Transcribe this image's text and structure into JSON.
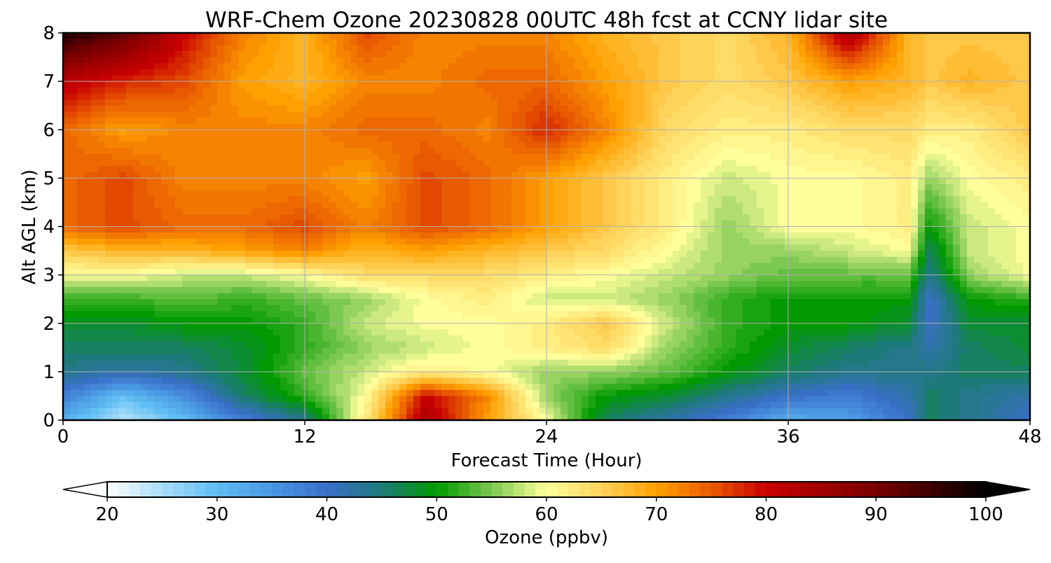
{
  "chart_data": {
    "type": "heatmap",
    "title": "WRF-Chem Ozone  20230828 00UTC 48h fcst at CCNY lidar site",
    "xlabel": "Forecast Time (Hour)",
    "ylabel": "Alt AGL (km)",
    "xlim": [
      0,
      48
    ],
    "ylim": [
      0,
      8
    ],
    "xticks": [
      0,
      12,
      24,
      36,
      48
    ],
    "yticks": [
      0,
      1,
      2,
      3,
      4,
      5,
      6,
      7,
      8
    ],
    "grid": true,
    "x": [
      0,
      3,
      6,
      9,
      12,
      15,
      18,
      21,
      24,
      27,
      30,
      33,
      36,
      39,
      42,
      43,
      45,
      48
    ],
    "y": [
      0,
      0.5,
      1,
      1.5,
      2,
      2.5,
      3,
      3.5,
      4,
      5,
      6,
      7,
      8
    ],
    "z": [
      [
        32,
        24,
        30,
        38,
        44,
        62,
        84,
        70,
        60,
        46,
        42,
        38,
        32,
        34,
        40,
        46,
        44,
        40
      ],
      [
        38,
        30,
        36,
        46,
        52,
        60,
        80,
        72,
        56,
        50,
        48,
        44,
        40,
        38,
        42,
        46,
        44,
        42
      ],
      [
        44,
        42,
        44,
        48,
        54,
        58,
        62,
        60,
        56,
        56,
        54,
        50,
        46,
        44,
        44,
        44,
        46,
        46
      ],
      [
        46,
        46,
        46,
        48,
        52,
        56,
        58,
        60,
        62,
        64,
        56,
        52,
        48,
        46,
        44,
        42,
        46,
        48
      ],
      [
        48,
        48,
        50,
        50,
        52,
        58,
        60,
        60,
        62,
        66,
        58,
        52,
        50,
        50,
        48,
        40,
        48,
        48
      ],
      [
        52,
        52,
        54,
        52,
        54,
        56,
        60,
        62,
        58,
        58,
        56,
        52,
        50,
        50,
        50,
        40,
        50,
        52
      ],
      [
        60,
        60,
        58,
        58,
        60,
        64,
        64,
        64,
        62,
        60,
        58,
        56,
        54,
        54,
        54,
        44,
        56,
        60
      ],
      [
        66,
        68,
        68,
        70,
        72,
        68,
        70,
        68,
        66,
        64,
        60,
        56,
        56,
        58,
        60,
        46,
        58,
        60
      ],
      [
        74,
        76,
        74,
        74,
        76,
        72,
        76,
        74,
        70,
        66,
        62,
        56,
        60,
        60,
        62,
        50,
        58,
        60
      ],
      [
        74,
        76,
        72,
        72,
        72,
        70,
        76,
        74,
        70,
        66,
        62,
        58,
        60,
        60,
        62,
        56,
        60,
        62
      ],
      [
        74,
        70,
        72,
        72,
        72,
        74,
        74,
        72,
        78,
        72,
        64,
        62,
        62,
        64,
        64,
        62,
        62,
        66
      ],
      [
        82,
        78,
        76,
        70,
        68,
        72,
        72,
        74,
        74,
        70,
        66,
        64,
        66,
        70,
        68,
        66,
        68,
        66
      ],
      [
        98,
        92,
        80,
        72,
        68,
        76,
        72,
        72,
        72,
        68,
        66,
        64,
        68,
        84,
        68,
        66,
        66,
        66
      ]
    ],
    "colorbar": {
      "label": "Ozone  (ppbv)",
      "min": 20,
      "max": 100,
      "ticks": [
        20,
        30,
        40,
        50,
        60,
        70,
        80,
        90,
        100
      ],
      "extend": "both",
      "stops": [
        [
          20,
          "#ffffff"
        ],
        [
          25,
          "#a8dcf8"
        ],
        [
          30,
          "#5fbef3"
        ],
        [
          35,
          "#4a97e2"
        ],
        [
          40,
          "#3a6fc8"
        ],
        [
          45,
          "#1e7a7a"
        ],
        [
          50,
          "#009a00"
        ],
        [
          55,
          "#7cc850"
        ],
        [
          60,
          "#ffff9c"
        ],
        [
          65,
          "#ffd25a"
        ],
        [
          70,
          "#ffa000"
        ],
        [
          75,
          "#e85a00"
        ],
        [
          80,
          "#c80000"
        ],
        [
          90,
          "#780000"
        ],
        [
          100,
          "#000000"
        ]
      ]
    }
  }
}
